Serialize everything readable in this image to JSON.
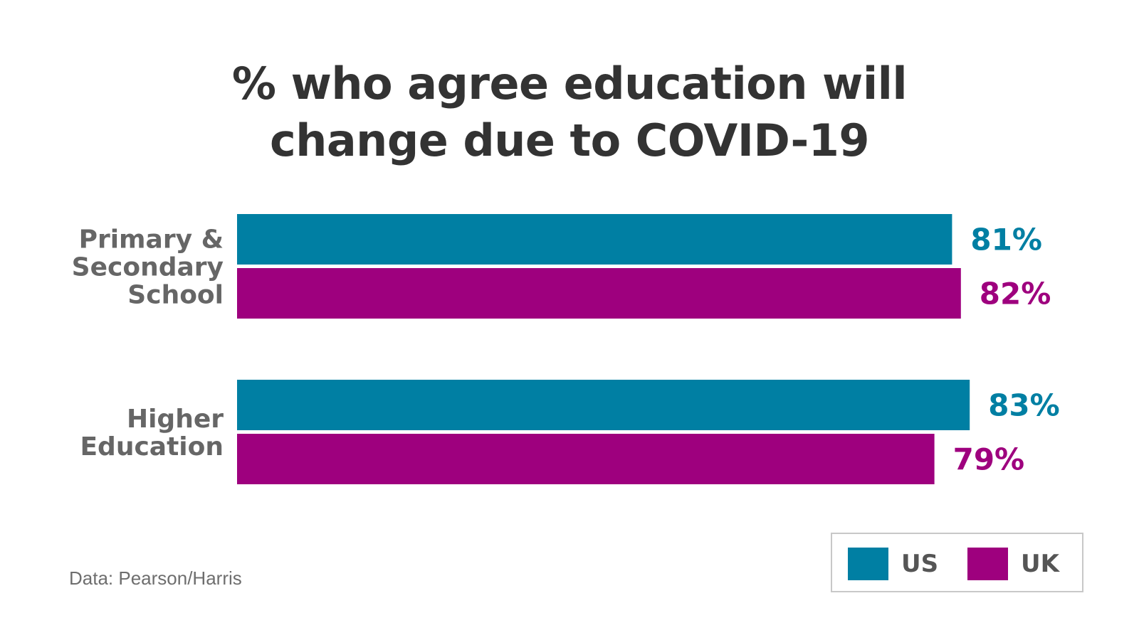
{
  "chart_data": {
    "type": "bar",
    "orientation": "horizontal",
    "title_lines": [
      "% who agree education will",
      "change due to COVID-19"
    ],
    "categories": [
      {
        "lines": [
          "Primary &",
          "Secondary",
          "School"
        ]
      },
      {
        "lines": [
          "Higher",
          "Education"
        ]
      }
    ],
    "series": [
      {
        "name": "US",
        "color": "#007fa3",
        "values": [
          81,
          83
        ],
        "labels": [
          "81%",
          "83%"
        ]
      },
      {
        "name": "UK",
        "color": "#9e007e",
        "values": [
          82,
          79
        ],
        "labels": [
          "82%",
          "79%"
        ]
      }
    ],
    "unit": "%",
    "xlim": [
      0,
      100
    ],
    "grid": false,
    "legend": "bottom-right",
    "source": "Data: Pearson/Harris"
  }
}
